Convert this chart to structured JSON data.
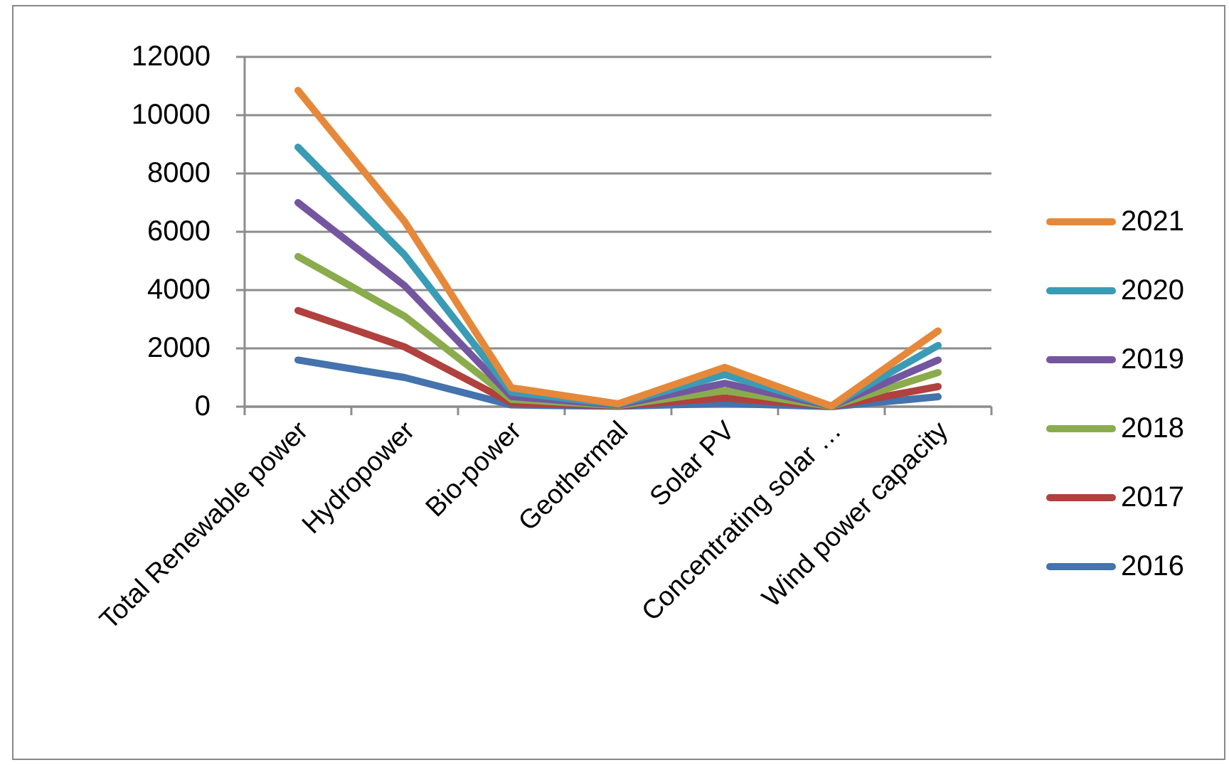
{
  "chart_data": {
    "type": "line",
    "categories": [
      "Total Renewable power",
      "Hydropower",
      "Bio-power",
      "Geothermal",
      "Solar PV",
      "Concentrating solar …",
      "Wind power capacity"
    ],
    "series": [
      {
        "name": "2021",
        "color": "#e6883a",
        "values": [
          10850,
          6350,
          650,
          100,
          1350,
          20,
          2600
        ]
      },
      {
        "name": "2020",
        "color": "#3a9bb5",
        "values": [
          8900,
          5200,
          500,
          80,
          1100,
          20,
          2100
        ]
      },
      {
        "name": "2019",
        "color": "#7456a0",
        "values": [
          7000,
          4150,
          350,
          60,
          800,
          20,
          1600
        ]
      },
      {
        "name": "2018",
        "color": "#8aac4c",
        "values": [
          5150,
          3100,
          250,
          40,
          550,
          10,
          1170
        ]
      },
      {
        "name": "2017",
        "color": "#b0413e",
        "values": [
          3300,
          2050,
          130,
          30,
          300,
          10,
          690
        ]
      },
      {
        "name": "2016",
        "color": "#4473ad",
        "values": [
          1600,
          1000,
          60,
          10,
          110,
          0,
          340
        ]
      }
    ],
    "ylim": [
      0,
      12000
    ],
    "yticks": [
      0,
      2000,
      4000,
      6000,
      8000,
      10000,
      12000
    ],
    "grid": "y",
    "legend": "right",
    "marker": "none",
    "line_style": "solid"
  }
}
